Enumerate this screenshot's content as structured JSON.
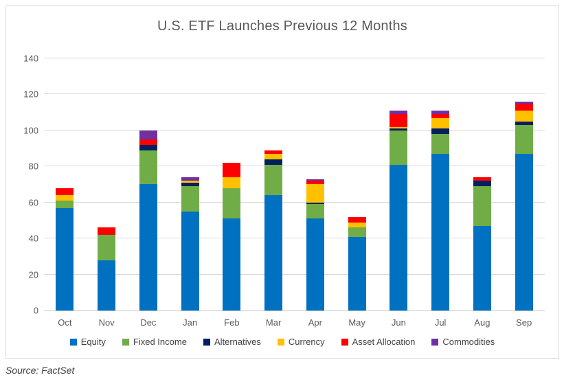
{
  "title": "U.S. ETF Launches Previous 12 Months",
  "source": "Source: FactSet",
  "colors": {
    "equity": "#0070C0",
    "fixed_income": "#70AD47",
    "alternatives": "#002060",
    "currency": "#FFC000",
    "asset_allocation": "#FF0000",
    "commodities": "#7030A0",
    "gridline": "#D9D9D9",
    "axis_line": "#C6C6C6",
    "axis_text": "#595959",
    "title_text": "#595959",
    "border": "#D9D9D9"
  },
  "chart_data": {
    "type": "bar",
    "stacked": true,
    "title": "U.S. ETF Launches Previous 12 Months",
    "categories": [
      "Oct",
      "Nov",
      "Dec",
      "Jan",
      "Feb",
      "Mar",
      "Apr",
      "May",
      "Jun",
      "Jul",
      "Aug",
      "Sep"
    ],
    "series": [
      {
        "name": "Equity",
        "color": "#0070C0",
        "values": [
          57,
          28,
          70,
          55,
          51,
          64,
          51,
          41,
          81,
          87,
          47,
          87
        ]
      },
      {
        "name": "Fixed Income",
        "color": "#70AD47",
        "values": [
          4,
          14,
          19,
          14,
          17,
          17,
          8,
          5,
          19,
          11,
          22,
          16
        ]
      },
      {
        "name": "Alternatives",
        "color": "#002060",
        "values": [
          0,
          0,
          3,
          2,
          0,
          3,
          1,
          0,
          1,
          3,
          3,
          2
        ]
      },
      {
        "name": "Currency",
        "color": "#FFC000",
        "values": [
          3,
          0,
          0,
          1,
          6,
          3,
          10,
          3,
          1,
          6,
          0,
          6
        ]
      },
      {
        "name": "Asset Allocation",
        "color": "#FF0000",
        "values": [
          4,
          4,
          3,
          0,
          8,
          2,
          2,
          3,
          7,
          2,
          2,
          4
        ]
      },
      {
        "name": "Commodities",
        "color": "#7030A0",
        "values": [
          0,
          0,
          5,
          2,
          0,
          0,
          1,
          0,
          2,
          2,
          0,
          1
        ]
      }
    ],
    "totals": [
      68,
      46,
      100,
      74,
      82,
      89,
      73,
      52,
      111,
      111,
      74,
      116
    ],
    "xlabel": "",
    "ylabel": "",
    "ylim": [
      0,
      140
    ],
    "ytick_step": 20,
    "grid": true,
    "legend_position": "bottom"
  }
}
